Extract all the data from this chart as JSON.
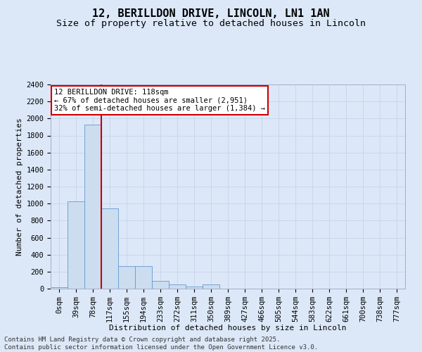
{
  "title": "12, BERILLDON DRIVE, LINCOLN, LN1 1AN",
  "subtitle": "Size of property relative to detached houses in Lincoln",
  "xlabel": "Distribution of detached houses by size in Lincoln",
  "ylabel": "Number of detached properties",
  "bar_labels": [
    "0sqm",
    "39sqm",
    "78sqm",
    "117sqm",
    "155sqm",
    "194sqm",
    "233sqm",
    "272sqm",
    "311sqm",
    "350sqm",
    "389sqm",
    "427sqm",
    "466sqm",
    "505sqm",
    "544sqm",
    "583sqm",
    "622sqm",
    "661sqm",
    "700sqm",
    "738sqm",
    "777sqm"
  ],
  "bar_values": [
    20,
    1025,
    1925,
    940,
    265,
    265,
    95,
    50,
    25,
    50,
    0,
    0,
    0,
    0,
    0,
    0,
    0,
    0,
    0,
    0,
    0
  ],
  "bar_color": "#ccddf0",
  "bar_edge_color": "#6699cc",
  "vline_x_index": 3,
  "vline_color": "#cc0000",
  "annotation_text": "12 BERILLDON DRIVE: 118sqm\n← 67% of detached houses are smaller (2,951)\n32% of semi-detached houses are larger (1,384) →",
  "annotation_box_color": "#ffffff",
  "annotation_box_edge_color": "#cc0000",
  "ylim": [
    0,
    2400
  ],
  "yticks": [
    0,
    200,
    400,
    600,
    800,
    1000,
    1200,
    1400,
    1600,
    1800,
    2000,
    2200,
    2400
  ],
  "grid_color": "#c8d4e8",
  "bg_color": "#dce8f8",
  "plot_bg_color": "#dce8f8",
  "footer_line1": "Contains HM Land Registry data © Crown copyright and database right 2025.",
  "footer_line2": "Contains public sector information licensed under the Open Government Licence v3.0.",
  "title_fontsize": 11,
  "subtitle_fontsize": 9.5,
  "axis_label_fontsize": 8,
  "tick_fontsize": 7.5,
  "annotation_fontsize": 7.5,
  "footer_fontsize": 6.5
}
